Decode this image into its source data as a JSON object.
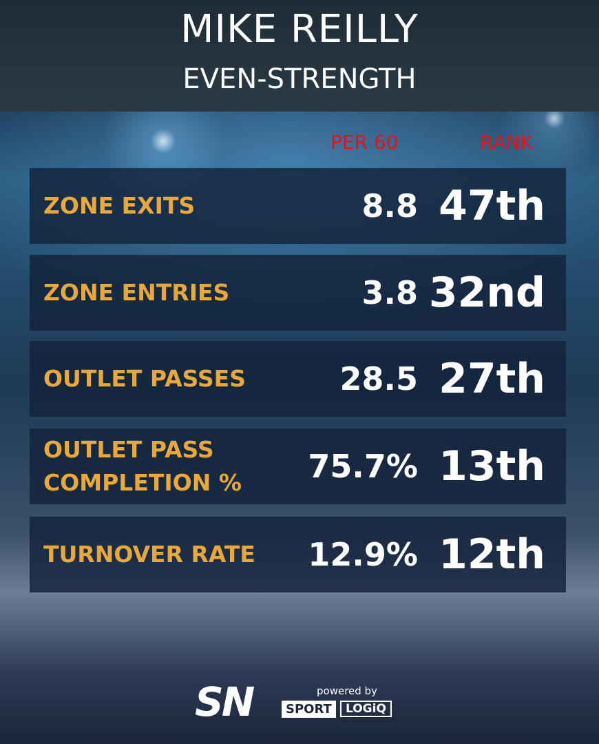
{
  "header": {
    "title": "MIKE REILLY",
    "subtitle": "EVEN-STRENGTH"
  },
  "table": {
    "columns": [
      "PER 60",
      "RANK"
    ],
    "rows": [
      [
        "ZONE EXITS",
        "8.8",
        "47th"
      ],
      [
        "ZONE ENTRIES",
        "3.8",
        "32nd"
      ],
      [
        "OUTLET PASSES",
        "28.5",
        "27th"
      ],
      [
        "OUTLET PASS COMPLETION %",
        "75.7%",
        "13th"
      ],
      [
        "TURNOVER RATE",
        "12.9%",
        "12th"
      ]
    ]
  },
  "footer": {
    "logo": "SN",
    "powered_by": "powered by",
    "sponsor": [
      "SPORT",
      "LOGiQ"
    ]
  }
}
